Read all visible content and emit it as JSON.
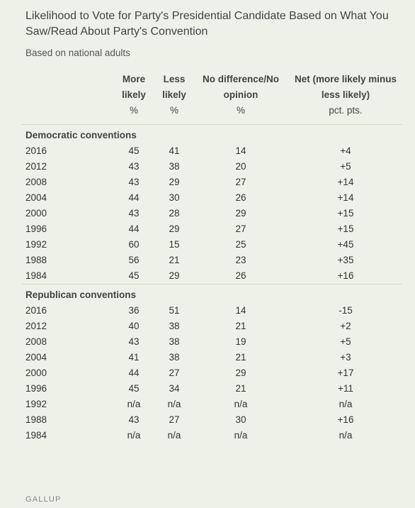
{
  "title": "Likelihood to Vote for Party's Presidential Candidate Based on What You Saw/Read About Party's Convention",
  "subtitle": "Based on national adults",
  "footer": "GALLUP",
  "chart_data": {
    "type": "table",
    "columns": [
      {
        "label": "More likely",
        "unit": "%"
      },
      {
        "label": "Less likely",
        "unit": "%"
      },
      {
        "label": "No difference/No opinion",
        "unit": "%"
      },
      {
        "label": "Net (more likely minus less likely)",
        "unit": "pct. pts."
      }
    ],
    "groups": [
      {
        "name": "Democratic conventions",
        "rows": [
          {
            "year": "2016",
            "values": [
              "45",
              "41",
              "14",
              "+4"
            ]
          },
          {
            "year": "2012",
            "values": [
              "43",
              "38",
              "20",
              "+5"
            ]
          },
          {
            "year": "2008",
            "values": [
              "43",
              "29",
              "27",
              "+14"
            ]
          },
          {
            "year": "2004",
            "values": [
              "44",
              "30",
              "26",
              "+14"
            ]
          },
          {
            "year": "2000",
            "values": [
              "43",
              "28",
              "29",
              "+15"
            ]
          },
          {
            "year": "1996",
            "values": [
              "44",
              "29",
              "27",
              "+15"
            ]
          },
          {
            "year": "1992",
            "values": [
              "60",
              "15",
              "25",
              "+45"
            ]
          },
          {
            "year": "1988",
            "values": [
              "56",
              "21",
              "23",
              "+35"
            ]
          },
          {
            "year": "1984",
            "values": [
              "45",
              "29",
              "26",
              "+16"
            ]
          }
        ]
      },
      {
        "name": "Republican conventions",
        "rows": [
          {
            "year": "2016",
            "values": [
              "36",
              "51",
              "14",
              "-15"
            ]
          },
          {
            "year": "2012",
            "values": [
              "40",
              "38",
              "21",
              "+2"
            ]
          },
          {
            "year": "2008",
            "values": [
              "43",
              "38",
              "19",
              "+5"
            ]
          },
          {
            "year": "2004",
            "values": [
              "41",
              "38",
              "21",
              "+3"
            ]
          },
          {
            "year": "2000",
            "values": [
              "44",
              "27",
              "29",
              "+17"
            ]
          },
          {
            "year": "1996",
            "values": [
              "45",
              "34",
              "21",
              "+11"
            ]
          },
          {
            "year": "1992",
            "values": [
              "n/a",
              "n/a",
              "n/a",
              "n/a"
            ]
          },
          {
            "year": "1988",
            "values": [
              "43",
              "27",
              "30",
              "+16"
            ]
          },
          {
            "year": "1984",
            "values": [
              "n/a",
              "n/a",
              "n/a",
              "n/a"
            ]
          }
        ]
      }
    ]
  }
}
